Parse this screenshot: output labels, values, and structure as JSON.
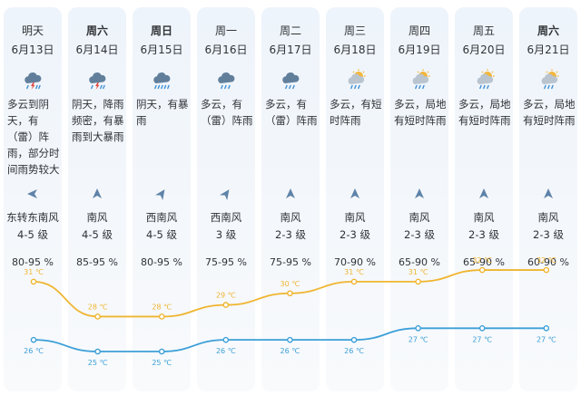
{
  "days": [
    {
      "name": "明天",
      "bold": false,
      "date": "6月13日",
      "icon": "thunderstorm-icon",
      "desc": "多云到阴天，有（雷）阵雨，部分时间雨势较大",
      "wind_dir": "东转东南风",
      "wind_level": "4-5 级",
      "wind_angle": -90,
      "humidity": "80-95 %",
      "high": "31 ℃",
      "low": "26 ℃"
    },
    {
      "name": "周六",
      "bold": true,
      "date": "6月14日",
      "icon": "thunderstorm-icon",
      "desc": "阴天，降雨频密，有暴雨到大暴雨",
      "wind_dir": "南风",
      "wind_level": "4-5 级",
      "wind_angle": 0,
      "humidity": "85-95 %",
      "high": "28 ℃",
      "low": "25 ℃"
    },
    {
      "name": "周日",
      "bold": true,
      "date": "6月15日",
      "icon": "heavy-rain-icon",
      "desc": "阴天，有暴雨",
      "wind_dir": "西南风",
      "wind_level": "4-5 级",
      "wind_angle": 35,
      "humidity": "80-95 %",
      "high": "28 ℃",
      "low": "25 ℃"
    },
    {
      "name": "周一",
      "bold": false,
      "date": "6月16日",
      "icon": "cloud-rain-icon",
      "desc": "多云，有（雷）阵雨",
      "wind_dir": "西南风",
      "wind_level": "3 级",
      "wind_angle": 35,
      "humidity": "75-95 %",
      "high": "29 ℃",
      "low": "26 ℃"
    },
    {
      "name": "周二",
      "bold": false,
      "date": "6月17日",
      "icon": "cloud-rain-icon",
      "desc": "多云，有（雷）阵雨",
      "wind_dir": "南风",
      "wind_level": "2-3 级",
      "wind_angle": 0,
      "humidity": "75-95 %",
      "high": "30 ℃",
      "low": "26 ℃"
    },
    {
      "name": "周三",
      "bold": false,
      "date": "6月18日",
      "icon": "sun-cloud-rain-icon",
      "desc": "多云，有短时阵雨",
      "wind_dir": "南风",
      "wind_level": "2-3 级",
      "wind_angle": 0,
      "humidity": "70-90 %",
      "high": "31 ℃",
      "low": "26 ℃"
    },
    {
      "name": "周四",
      "bold": false,
      "date": "6月19日",
      "icon": "sun-cloud-rain-icon",
      "desc": "多云，局地有短时阵雨",
      "wind_dir": "南风",
      "wind_level": "2-3 级",
      "wind_angle": 0,
      "humidity": "65-90 %",
      "high": "31 ℃",
      "low": "27 ℃"
    },
    {
      "name": "周五",
      "bold": false,
      "date": "6月20日",
      "icon": "sun-cloud-rain-icon",
      "desc": "多云，局地有短时阵雨",
      "wind_dir": "南风",
      "wind_level": "2-3 级",
      "wind_angle": 0,
      "humidity": "65-90 %",
      "high": "32 ℃",
      "low": "27 ℃"
    },
    {
      "name": "周六",
      "bold": true,
      "date": "6月21日",
      "icon": "sun-cloud-rain-icon",
      "desc": "多云，局地有短时阵雨",
      "wind_dir": "南风",
      "wind_level": "2-3 级",
      "wind_angle": 0,
      "humidity": "60-90 %",
      "high": "32 ℃",
      "low": "27 ℃"
    }
  ],
  "chart_data": {
    "type": "line",
    "categories": [
      "6月13日",
      "6月14日",
      "6月15日",
      "6月16日",
      "6月17日",
      "6月18日",
      "6月19日",
      "6月20日",
      "6月21日"
    ],
    "series": [
      {
        "values": [
          31,
          28,
          28,
          29,
          30,
          31,
          31,
          32,
          32
        ],
        "color": "#f0b530"
      },
      {
        "values": [
          26,
          25,
          25,
          26,
          26,
          26,
          27,
          27,
          27
        ],
        "color": "#3c9fd8"
      }
    ],
    "ylim": [
      24,
      33
    ],
    "unit": "℃"
  },
  "colors": {
    "card_bg": "#eef4fb",
    "high_line": "#f0b530",
    "low_line": "#3c9fd8",
    "wind_arrow": "#5f83a8",
    "icon_cloud": "#617f9b",
    "icon_rain": "#3d8fd6",
    "icon_bolt": "#e0443b",
    "icon_sun": "#f4b63a"
  }
}
